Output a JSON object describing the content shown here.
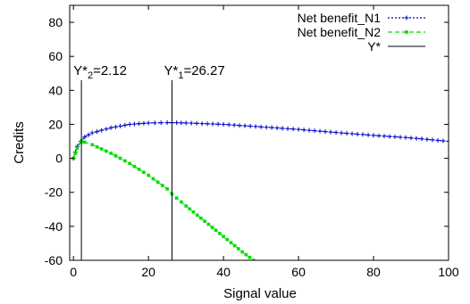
{
  "chart_data": {
    "type": "line",
    "xlabel": "Signal value",
    "ylabel": "Credits",
    "xlim": [
      -1,
      100
    ],
    "ylim": [
      -60,
      90
    ],
    "xticks": [
      0,
      20,
      40,
      60,
      80,
      100
    ],
    "yticks": [
      -60,
      -40,
      -20,
      0,
      20,
      40,
      60,
      80
    ],
    "legend_position": "top-right",
    "series": [
      {
        "name": "Net benefit_N1",
        "color": "#0000cc",
        "line_style": "dotted",
        "marker": "plus",
        "x": [
          0,
          1,
          2,
          3,
          5,
          10,
          15,
          20,
          25,
          26.27,
          30,
          40,
          50,
          60,
          70,
          80,
          90,
          100
        ],
        "y": [
          0,
          7,
          10,
          12.5,
          15,
          18,
          20,
          20.8,
          21,
          21,
          20.8,
          20,
          18.5,
          17,
          15.2,
          13.5,
          12,
          10
        ]
      },
      {
        "name": "Net benefit_N2",
        "color": "#00dd00",
        "line_style": "dashed",
        "marker": "square",
        "x": [
          0,
          1,
          2,
          2.12,
          3,
          5,
          10,
          15,
          20,
          25,
          26.27,
          30,
          35,
          40,
          45,
          48
        ],
        "y": [
          0,
          6,
          9.5,
          10,
          9.5,
          8,
          3,
          -3,
          -10,
          -18,
          -21,
          -28,
          -37,
          -46,
          -55,
          -60
        ]
      }
    ],
    "vlines": [
      {
        "name": "Y*",
        "color": "#000000",
        "x": 2.12,
        "label_main": "Y*",
        "label_sub": "2",
        "label_tail": "=2.12"
      },
      {
        "name": "Y*",
        "color": "#000000",
        "x": 26.27,
        "label_main": "Y*",
        "label_sub": "1",
        "label_tail": "=26.27"
      }
    ],
    "legend": [
      {
        "label": "Net benefit_N1",
        "series": 0
      },
      {
        "label": "Net benefit_N2",
        "series": 1
      },
      {
        "label": "Y*",
        "series": "vline"
      }
    ]
  }
}
